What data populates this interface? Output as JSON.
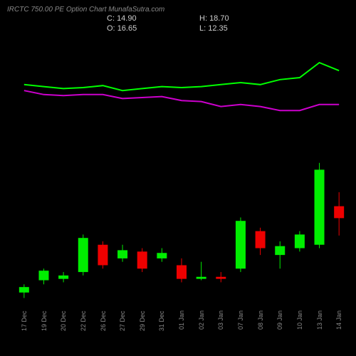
{
  "header": {
    "title": "IRCTC 750.00  PE Option  Chart MunafaSutra.com"
  },
  "ohlc": {
    "c_label": "C:",
    "c_val": "14.90",
    "o_label": "O:",
    "o_val": "16.65",
    "h_label": "H:",
    "h_val": "18.70",
    "l_label": "L:",
    "l_val": "12.35"
  },
  "chart": {
    "background": "#000000",
    "grid_color": "#222222",
    "axis_color": "#555555",
    "text_color": "#888888",
    "line1_color": "#00ff00",
    "line2_color": "#cc00cc",
    "up_color": "#00ee00",
    "down_color": "#ee0000",
    "wick_color_up": "#00ee00",
    "wick_color_down": "#ee0000",
    "candle_width": 14,
    "x_labels": [
      "17 Dec",
      "19 Dec",
      "20 Dec",
      "22 Dec",
      "26 Dec",
      "27 Dec",
      "29 Dec",
      "31 Dec",
      "01 Jan",
      "02 Jan",
      "03 Jan",
      "07 Jan",
      "08 Jan",
      "09 Jan",
      "10 Jan",
      "13 Jan",
      "14 Jan"
    ],
    "price_min": 2,
    "price_max": 26,
    "ind_min": 0,
    "ind_max": 100,
    "candles": [
      {
        "o": 4.0,
        "h": 5.2,
        "l": 3.2,
        "c": 4.8
      },
      {
        "o": 5.8,
        "h": 7.5,
        "l": 5.2,
        "c": 7.2
      },
      {
        "o": 6.0,
        "h": 7.0,
        "l": 5.5,
        "c": 6.5
      },
      {
        "o": 7.0,
        "h": 12.5,
        "l": 6.5,
        "c": 12.0
      },
      {
        "o": 11.0,
        "h": 11.5,
        "l": 7.5,
        "c": 8.0
      },
      {
        "o": 9.0,
        "h": 11.0,
        "l": 8.5,
        "c": 10.2
      },
      {
        "o": 10.0,
        "h": 10.5,
        "l": 7.0,
        "c": 7.5
      },
      {
        "o": 9.0,
        "h": 10.5,
        "l": 8.5,
        "c": 9.8
      },
      {
        "o": 8.0,
        "h": 9.0,
        "l": 5.5,
        "c": 6.0
      },
      {
        "o": 6.0,
        "h": 8.5,
        "l": 5.8,
        "c": 6.3
      },
      {
        "o": 6.3,
        "h": 7.0,
        "l": 5.5,
        "c": 6.0
      },
      {
        "o": 7.5,
        "h": 15.0,
        "l": 7.0,
        "c": 14.5
      },
      {
        "o": 13.0,
        "h": 13.5,
        "l": 9.5,
        "c": 10.5
      },
      {
        "o": 9.5,
        "h": 11.5,
        "l": 7.5,
        "c": 10.8
      },
      {
        "o": 10.5,
        "h": 13.0,
        "l": 10.0,
        "c": 12.5
      },
      {
        "o": 11.0,
        "h": 23.0,
        "l": 10.5,
        "c": 22.0
      },
      {
        "o": 16.65,
        "h": 18.7,
        "l": 12.35,
        "c": 14.9
      }
    ],
    "line1": [
      58,
      56,
      54,
      55,
      57,
      52,
      54,
      56,
      55,
      56,
      58,
      60,
      58,
      63,
      65,
      80,
      72
    ],
    "line2": [
      52,
      48,
      47,
      48,
      48,
      44,
      45,
      46,
      42,
      41,
      36,
      38,
      36,
      32,
      32,
      38,
      38
    ]
  }
}
